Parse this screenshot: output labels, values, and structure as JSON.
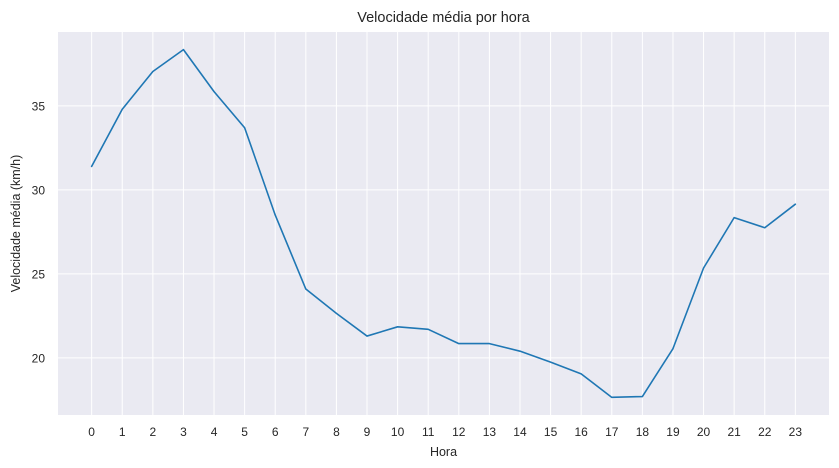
{
  "chart_data": {
    "type": "line",
    "title": "Velocidade média por hora",
    "xlabel": "Hora",
    "ylabel": "Velocidade média (km/h)",
    "x": [
      0,
      1,
      2,
      3,
      4,
      5,
      6,
      7,
      8,
      9,
      10,
      11,
      12,
      13,
      14,
      15,
      16,
      17,
      18,
      19,
      20,
      21,
      22,
      23
    ],
    "x_ticks": [
      "0",
      "1",
      "2",
      "3",
      "4",
      "5",
      "6",
      "7",
      "8",
      "9",
      "10",
      "11",
      "12",
      "13",
      "14",
      "15",
      "16",
      "17",
      "18",
      "19",
      "20",
      "21",
      "22",
      "23"
    ],
    "series": [
      {
        "values": [
          31.4,
          34.8,
          37.05,
          38.35,
          35.85,
          33.7,
          28.5,
          24.1,
          22.65,
          21.3,
          21.85,
          21.7,
          20.85,
          20.85,
          20.4,
          19.75,
          19.05,
          17.65,
          17.7,
          20.55,
          25.35,
          28.35,
          27.75,
          29.15
        ],
        "color": "#1f77b4"
      }
    ],
    "y_ticks": [
      20,
      25,
      30,
      35
    ],
    "xlim": [
      -1.1,
      24.1
    ],
    "ylim": [
      16.6,
      39.4
    ],
    "grid": true,
    "legend": "none"
  }
}
